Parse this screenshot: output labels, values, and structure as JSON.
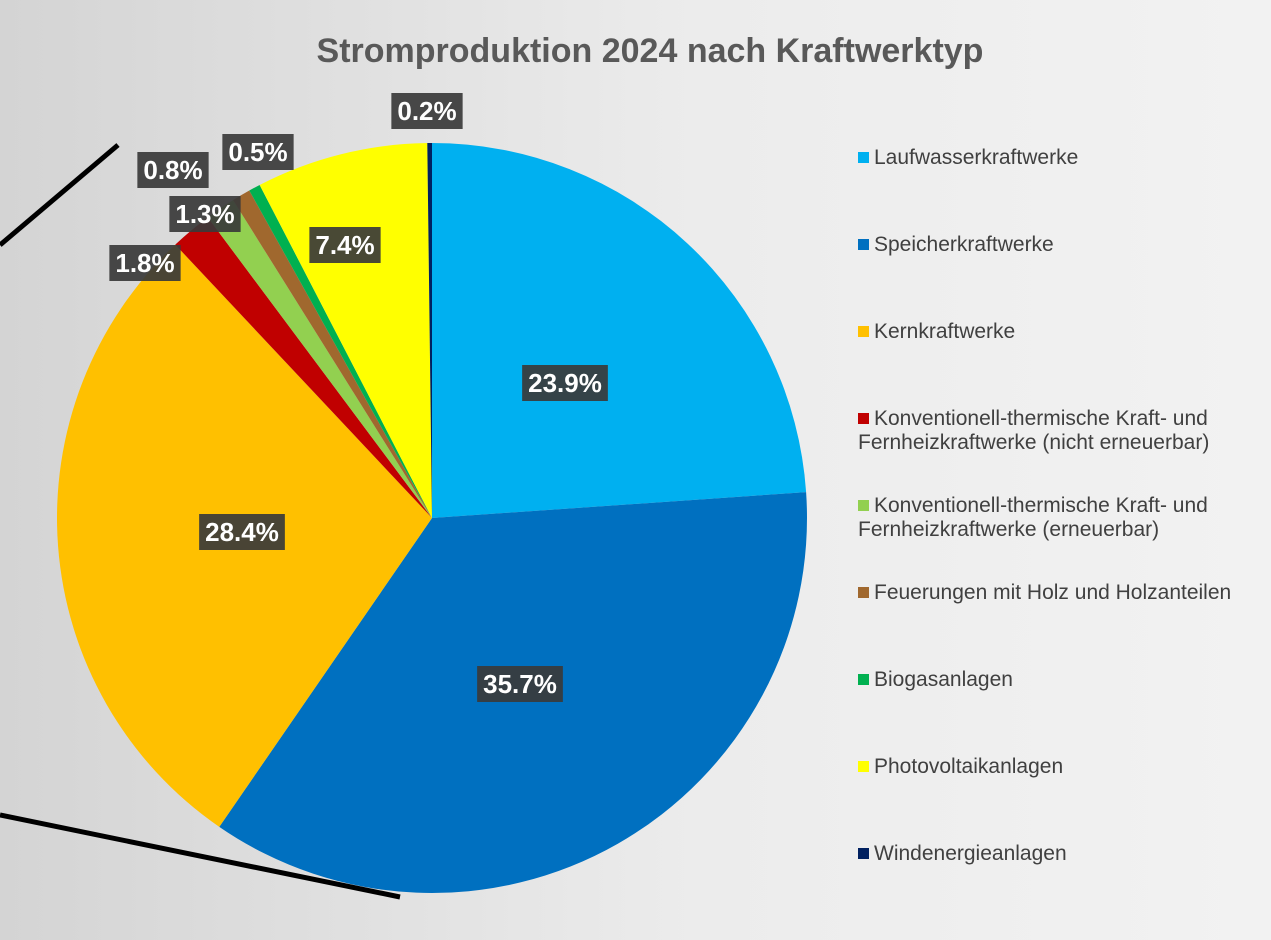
{
  "chart_data": {
    "type": "pie",
    "title": "Stromproduktion 2024 nach Kraftwerktyp",
    "categories": [
      "Laufwasserkraftwerke",
      "Speicherkraftwerke",
      "Kernkraftwerke",
      "Konventionell-thermische Kraft- und Fernheizkraftwerke (nicht erneuerbar)",
      "Konventionell-thermische Kraft- und Fernheizkraftwerke (erneuerbar)",
      "Feuerungen mit Holz und Holzanteilen",
      "Biogasanlagen",
      "Photovoltaikanlagen",
      "Windenergieanlagen"
    ],
    "values": [
      23.9,
      35.7,
      28.4,
      1.8,
      1.3,
      0.8,
      0.5,
      7.4,
      0.2
    ],
    "value_labels": [
      "23.9%",
      "35.7%",
      "28.4%",
      "1.8%",
      "1.3%",
      "0.8%",
      "0.5%",
      "7.4%",
      "0.2%"
    ],
    "colors": [
      "#00b0f0",
      "#0070c0",
      "#ffc000",
      "#c00000",
      "#92d050",
      "#a0682e",
      "#00b050",
      "#ffff00",
      "#002060"
    ],
    "legend": "right"
  }
}
